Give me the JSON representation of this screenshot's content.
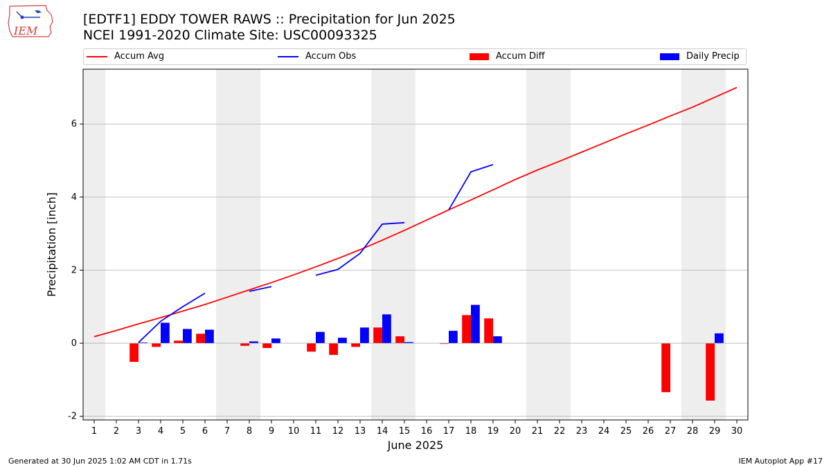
{
  "header": {
    "title_line1": "[EDTF1] EDDY TOWER RAWS :: Precipitation for Jun 2025",
    "title_line2": "NCEI 1991-2020 Climate Site: USC00093325",
    "logo_text": "IEM"
  },
  "footer": {
    "left": "Generated at 30 Jun 2025 1:02 AM CDT in 1.71s",
    "right": "IEM Autoplot App #17"
  },
  "colors": {
    "avg": "#ff0000",
    "obs": "#0000ff",
    "diff": "#ff0000",
    "daily": "#0000ff",
    "weekend": "#eeeeee",
    "grid": "#b0b0b0"
  },
  "chart_data": {
    "type": "bar",
    "xlabel": "June 2025",
    "ylabel": "Precipitation [inch]",
    "xlim": [
      0.5,
      30.5
    ],
    "ylim": [
      -2.1,
      7.5
    ],
    "yticks": [
      -2,
      0,
      2,
      4,
      6
    ],
    "grid": "horizontal",
    "legend_position": "top",
    "legend": [
      "Accum Avg",
      "Accum Obs",
      "Accum Diff",
      "Daily Precip"
    ],
    "days": [
      1,
      2,
      3,
      4,
      5,
      6,
      7,
      8,
      9,
      10,
      11,
      12,
      13,
      14,
      15,
      16,
      17,
      18,
      19,
      20,
      21,
      22,
      23,
      24,
      25,
      26,
      27,
      28,
      29,
      30
    ],
    "shaded_weekends": [
      [
        0.5,
        1.5
      ],
      [
        6.5,
        8.5
      ],
      [
        13.5,
        15.5
      ],
      [
        20.5,
        22.5
      ],
      [
        27.5,
        29.5
      ]
    ],
    "series": [
      {
        "name": "Accum Avg",
        "kind": "line",
        "x": [
          1,
          2,
          3,
          4,
          5,
          6,
          7,
          8,
          9,
          10,
          11,
          12,
          13,
          14,
          15,
          16,
          17,
          18,
          19,
          20,
          21,
          22,
          23,
          24,
          25,
          26,
          27,
          28,
          29,
          30
        ],
        "values": [
          0.18,
          0.35,
          0.53,
          0.7,
          0.88,
          1.06,
          1.26,
          1.46,
          1.66,
          1.87,
          2.09,
          2.32,
          2.56,
          2.82,
          3.09,
          3.37,
          3.65,
          3.92,
          4.2,
          4.48,
          4.74,
          4.98,
          5.23,
          5.48,
          5.73,
          5.97,
          6.22,
          6.46,
          6.73,
          7.0
        ]
      },
      {
        "name": "Accum Obs",
        "kind": "line",
        "x": [
          1,
          2,
          3,
          4,
          5,
          6,
          7,
          8,
          9,
          10,
          11,
          12,
          13,
          14,
          15,
          16,
          17,
          18,
          19,
          20,
          21,
          22,
          23,
          24,
          25,
          26,
          27,
          28,
          29,
          30
        ],
        "values": [
          null,
          null,
          0.02,
          0.6,
          1.0,
          1.37,
          null,
          1.42,
          1.55,
          null,
          1.86,
          2.02,
          2.46,
          3.26,
          3.3,
          null,
          3.65,
          4.69,
          4.89,
          null,
          null,
          null,
          null,
          null,
          null,
          null,
          null,
          null,
          null,
          null
        ]
      },
      {
        "name": "Accum Diff",
        "kind": "bar",
        "x": [
          3,
          4,
          5,
          6,
          8,
          9,
          11,
          12,
          13,
          14,
          15,
          17,
          18,
          19,
          27,
          29
        ],
        "values": [
          -0.51,
          -0.1,
          0.07,
          0.26,
          -0.07,
          -0.13,
          -0.23,
          -0.32,
          -0.1,
          0.43,
          0.19,
          -0.02,
          0.77,
          0.68,
          -1.34,
          -1.57
        ]
      },
      {
        "name": "Daily Precip",
        "kind": "bar",
        "x": [
          3,
          4,
          5,
          6,
          8,
          9,
          11,
          12,
          13,
          14,
          15,
          17,
          18,
          19,
          29
        ],
        "values": [
          0.02,
          0.56,
          0.39,
          0.37,
          0.05,
          0.13,
          0.31,
          0.15,
          0.43,
          0.79,
          0.03,
          0.34,
          1.05,
          0.19,
          0.27
        ]
      }
    ]
  }
}
